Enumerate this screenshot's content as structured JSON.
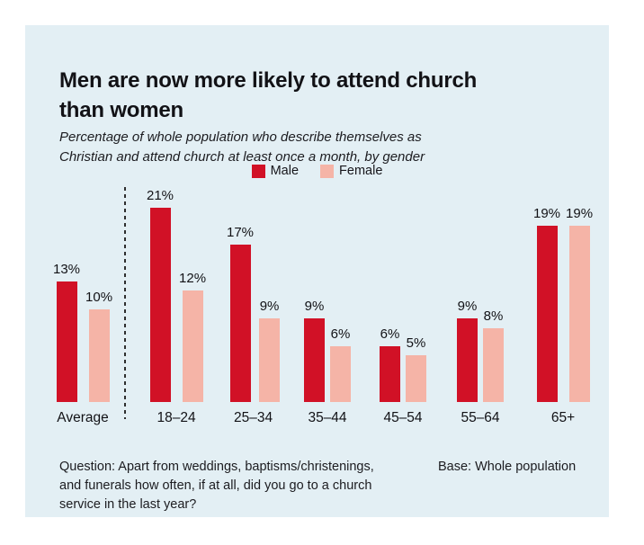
{
  "card": {
    "title_lines": [
      "Men are now more likely to attend church",
      "than women"
    ],
    "subtitle_lines": [
      "Percentage of whole population who describe themselves as",
      "Christian and attend church at least once a month, by gender"
    ],
    "legend": [
      {
        "label": "Male",
        "color": "#d11126"
      },
      {
        "label": "Female",
        "color": "#f5b4a7"
      }
    ],
    "footer": {
      "question_lines": [
        "Question: Apart from weddings, baptisms/christenings,",
        "and funerals how often, if at all, did you go to a church",
        "service in the last year?"
      ],
      "base": "Base: Whole population"
    }
  },
  "chart_data": {
    "type": "bar",
    "title": "Men are now more likely to attend church than women",
    "subtitle": "Percentage of whole population who describe themselves as Christian and attend church at least once a month, by gender",
    "categories": [
      "Average",
      "18–24",
      "25–34",
      "35–44",
      "45–54",
      "55–64",
      "65+"
    ],
    "series": [
      {
        "name": "Male",
        "color": "#d11126",
        "values": [
          13,
          21,
          17,
          9,
          6,
          9,
          19
        ]
      },
      {
        "name": "Female",
        "color": "#f5b4a7",
        "values": [
          10,
          12,
          9,
          6,
          5,
          8,
          19
        ]
      }
    ],
    "value_suffix": "%",
    "unit": "percent of whole population",
    "ylim": [
      0,
      22
    ],
    "grid": false,
    "axis_lines": false,
    "legend_position": "top-center",
    "divider_after_category": "Average",
    "background_color": "#e3eff4"
  }
}
